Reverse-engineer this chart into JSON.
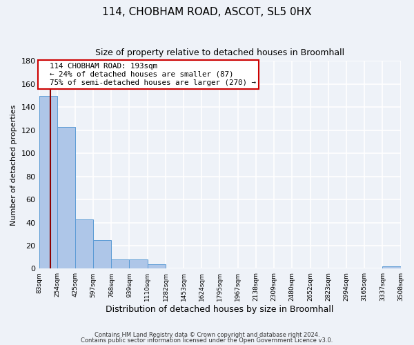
{
  "title": "114, CHOBHAM ROAD, ASCOT, SL5 0HX",
  "subtitle": "Size of property relative to detached houses in Broomhall",
  "xlabel": "Distribution of detached houses by size in Broomhall",
  "ylabel": "Number of detached properties",
  "bar_edges": [
    83,
    254,
    425,
    597,
    768,
    939,
    1110,
    1282,
    1453,
    1624,
    1795,
    1967,
    2138,
    2309,
    2480,
    2652,
    2823,
    2994,
    3165,
    3337,
    3508
  ],
  "bar_heights": [
    150,
    123,
    43,
    25,
    8,
    8,
    4,
    0,
    0,
    0,
    0,
    0,
    0,
    0,
    0,
    0,
    0,
    0,
    0,
    2
  ],
  "tick_labels": [
    "83sqm",
    "254sqm",
    "425sqm",
    "597sqm",
    "768sqm",
    "939sqm",
    "1110sqm",
    "1282sqm",
    "1453sqm",
    "1624sqm",
    "1795sqm",
    "1967sqm",
    "2138sqm",
    "2309sqm",
    "2480sqm",
    "2652sqm",
    "2823sqm",
    "2994sqm",
    "3165sqm",
    "3337sqm",
    "3508sqm"
  ],
  "bar_color": "#aec6e8",
  "bar_edge_color": "#5b9bd5",
  "property_line_x": 193,
  "property_line_color": "#8b0000",
  "annotation_title": "114 CHOBHAM ROAD: 193sqm",
  "annotation_line1": "← 24% of detached houses are smaller (87)",
  "annotation_line2": "75% of semi-detached houses are larger (270) →",
  "annotation_box_color": "#ffffff",
  "annotation_box_edge": "#cc0000",
  "ylim": [
    0,
    180
  ],
  "yticks": [
    0,
    20,
    40,
    60,
    80,
    100,
    120,
    140,
    160,
    180
  ],
  "footer1": "Contains HM Land Registry data © Crown copyright and database right 2024.",
  "footer2": "Contains public sector information licensed under the Open Government Licence v3.0.",
  "bg_color": "#eef2f8",
  "grid_color": "#ffffff"
}
